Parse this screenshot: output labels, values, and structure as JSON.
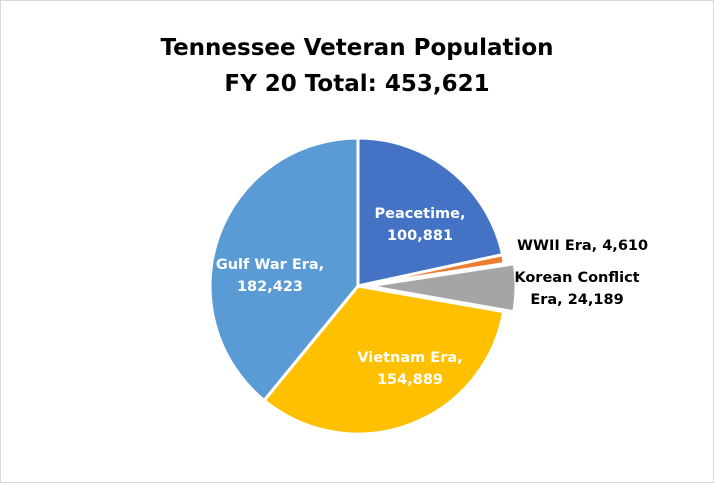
{
  "chart_data": {
    "type": "pie",
    "title": "Tennessee Veteran Population",
    "subtitle": "FY 20 Total: 453,621",
    "slices": [
      {
        "label": "Peacetime,",
        "value_text": "100,881",
        "value": 100881,
        "color": "#4472c4"
      },
      {
        "label": "WWII Era, 4,610",
        "value_text": "",
        "value": 4610,
        "color": "#ed7d31"
      },
      {
        "label": "Korean Conflict",
        "value_text": "Era, 24,189",
        "value": 24189,
        "color": "#a5a5a5"
      },
      {
        "label": "Vietnam Era,",
        "value_text": "154,889",
        "value": 154889,
        "color": "#ffc000"
      },
      {
        "label": "Gulf War Era,",
        "value_text": "182,423",
        "value": 182423,
        "color": "#5b9bd5"
      }
    ],
    "legend": "none"
  }
}
